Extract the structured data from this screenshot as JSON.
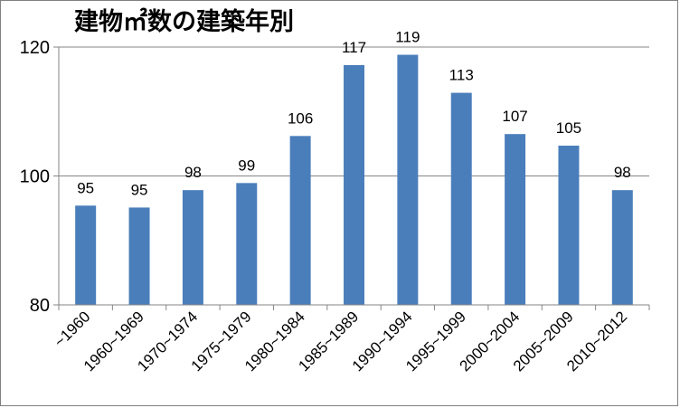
{
  "chart_data": {
    "type": "bar",
    "title": "建物㎡数の建築年別",
    "xlabel": "",
    "ylabel": "",
    "categories": [
      "~1960",
      "1960~1969",
      "1970~1974",
      "1975~1979",
      "1980~1984",
      "1985~1989",
      "1990~1994",
      "1995~1999",
      "2000~2004",
      "2005~2009",
      "2010~2012"
    ],
    "series": [
      {
        "values": [
          95,
          95,
          98,
          99,
          106,
          117,
          119,
          113,
          107,
          105,
          98
        ],
        "heights": [
          95.4,
          95.1,
          97.8,
          98.9,
          106.2,
          117.2,
          118.8,
          112.9,
          106.5,
          104.7,
          97.8
        ],
        "color": "#4a7ebb"
      }
    ],
    "ylim": [
      80,
      120
    ],
    "yticks": [
      80,
      100,
      120
    ],
    "grid": true,
    "legend": "none"
  }
}
